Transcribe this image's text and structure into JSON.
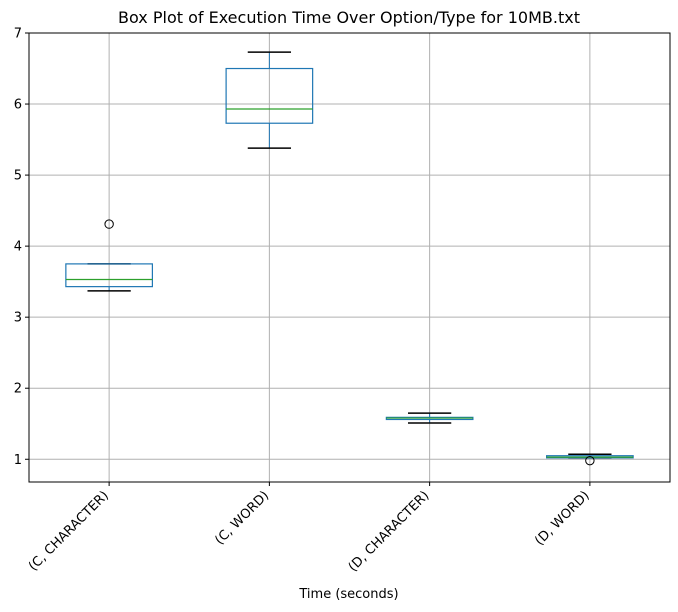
{
  "chart_data": {
    "type": "box",
    "title": "Box Plot of Execution Time Over Option/Type for 10MB.txt",
    "xlabel": "Time (seconds)",
    "ylabel": "",
    "ylim": [
      0.68,
      7.0
    ],
    "yticks": [
      1,
      2,
      3,
      4,
      5,
      6,
      7
    ],
    "grid": true,
    "categories": [
      "(C, CHARACTER)",
      "(C, WORD)",
      "(D, CHARACTER)",
      "(D, WORD)"
    ],
    "boxes": [
      {
        "whisker_low": 3.37,
        "q1": 3.43,
        "median": 3.53,
        "q3": 3.75,
        "whisker_high": 3.75,
        "outliers": [
          4.31
        ]
      },
      {
        "whisker_low": 5.38,
        "q1": 5.73,
        "median": 5.93,
        "q3": 6.5,
        "whisker_high": 6.73,
        "outliers": []
      },
      {
        "whisker_low": 1.51,
        "q1": 1.56,
        "median": 1.58,
        "q3": 1.59,
        "whisker_high": 1.65,
        "outliers": []
      },
      {
        "whisker_low": 1.02,
        "q1": 1.02,
        "median": 1.03,
        "q3": 1.05,
        "whisker_high": 1.07,
        "outliers": [
          0.98
        ]
      }
    ],
    "colors": {
      "box": "#1f77b4",
      "median": "#2ca02c",
      "whisker": "#000000",
      "grid": "#b0b0b0"
    }
  }
}
